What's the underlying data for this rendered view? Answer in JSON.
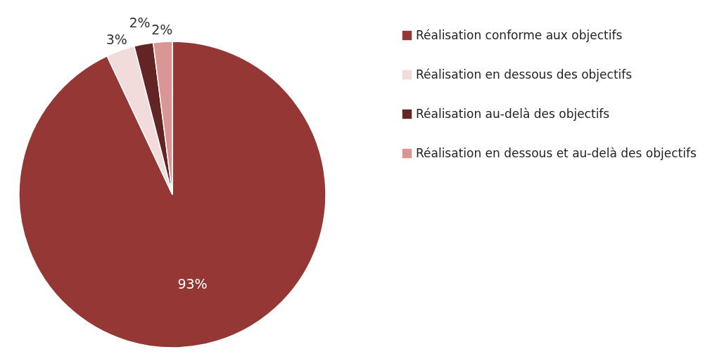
{
  "chart_data": {
    "type": "pie",
    "categories": [
      "Réalisation conforme aux objectifs",
      "Réalisation en dessous des objectifs",
      "Réalisation au-delà des objectifs",
      "Réalisation en dessous et au-delà des objectifs"
    ],
    "values": [
      93,
      3,
      2,
      2
    ],
    "colors": [
      "#953735",
      "#f2dcdb",
      "#632523",
      "#d99694"
    ],
    "value_labels": [
      "93%",
      "3%",
      "2%",
      "2%"
    ],
    "legend": "right"
  }
}
